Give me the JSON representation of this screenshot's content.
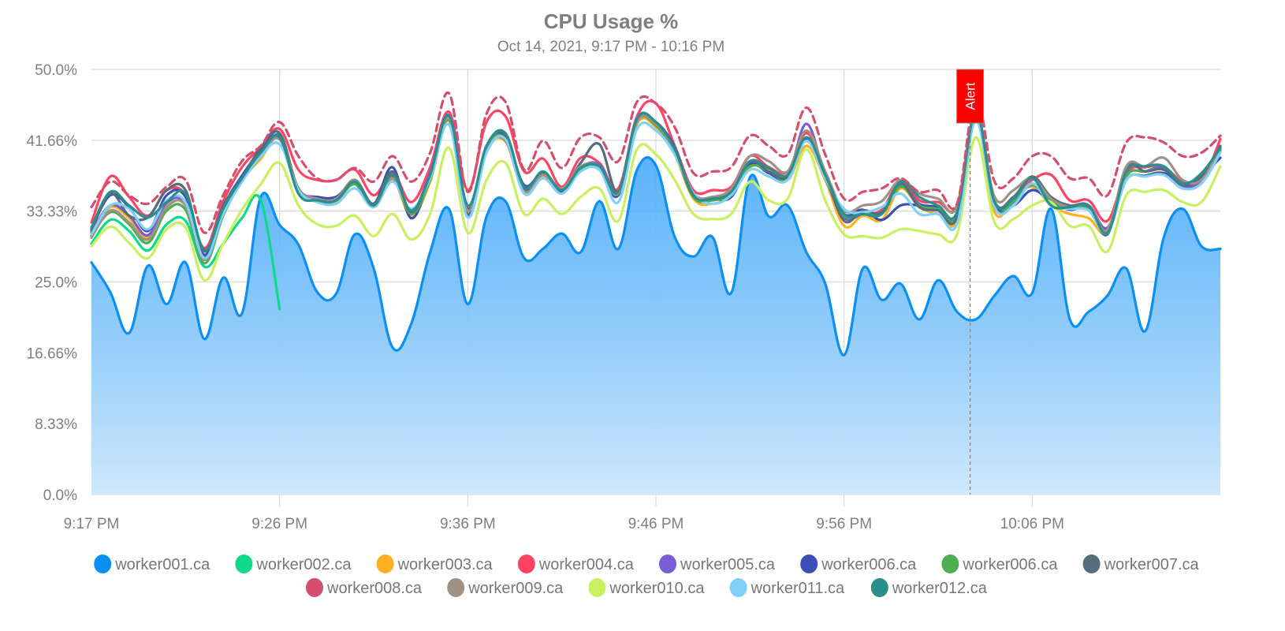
{
  "chart_data": {
    "type": "line",
    "title": "CPU Usage %",
    "subtitle": "Oct 14, 2021, 9:17 PM - 10:16 PM",
    "xlabel": "",
    "ylabel": "",
    "x_unit": "minutes since start",
    "x_range": [
      0,
      60
    ],
    "ylim": [
      0,
      50
    ],
    "y_ticks": [
      {
        "value": 0,
        "label": "0.0%"
      },
      {
        "value": 8.33,
        "label": "8.33%"
      },
      {
        "value": 16.66,
        "label": "16.66%"
      },
      {
        "value": 25.0,
        "label": "25.0%"
      },
      {
        "value": 33.33,
        "label": "33.33%"
      },
      {
        "value": 41.66,
        "label": "41.66%"
      },
      {
        "value": 50.0,
        "label": "50.0%"
      }
    ],
    "x_ticks": [
      {
        "value": 0,
        "label": "9:17 PM"
      },
      {
        "value": 10,
        "label": "9:26 PM"
      },
      {
        "value": 20,
        "label": "9:36 PM"
      },
      {
        "value": 30,
        "label": "9:46 PM"
      },
      {
        "value": 40,
        "label": "9:56 PM"
      },
      {
        "value": 50,
        "label": "10:06 PM"
      }
    ],
    "grid": true,
    "legend_position": "bottom",
    "annotations": [
      {
        "type": "vertical-line",
        "x": 46.7,
        "label": "Alert",
        "color": "#ff0000"
      }
    ],
    "series": [
      {
        "name": "worker001.ca",
        "color": "#0a8ff5",
        "style": "area",
        "values": [
          27.3,
          23.8,
          19.0,
          26.9,
          22.4,
          27.3,
          18.3,
          25.5,
          21.3,
          35.0,
          31.7,
          29.4,
          23.8,
          23.6,
          30.6,
          26.6,
          17.3,
          20.1,
          28.5,
          33.6,
          22.4,
          32.7,
          34.5,
          27.8,
          28.9,
          30.7,
          28.5,
          34.5,
          28.9,
          38.2,
          38.7,
          30.3,
          28.0,
          30.3,
          23.7,
          37.3,
          32.7,
          34.0,
          28.5,
          24.8,
          16.4,
          26.6,
          22.9,
          24.8,
          20.6,
          25.2,
          21.5,
          20.6,
          23.4,
          25.7,
          23.7,
          33.6,
          20.6,
          21.5,
          23.4,
          26.6,
          19.2,
          30.3,
          33.6,
          29.2,
          28.9
        ]
      },
      {
        "name": "worker002.ca",
        "color": "#0fd98a",
        "style": "line",
        "values": [
          29.5,
          32.3,
          31.0,
          28.7,
          31.8,
          32.2,
          26.8,
          29.5,
          32.5,
          34.6,
          21.8
        ]
      },
      {
        "name": "worker003.ca",
        "color": "#ffb020",
        "style": "line",
        "values": [
          30.6,
          33.8,
          32.5,
          30.2,
          34.2,
          34.3,
          27.6,
          33.0,
          37.0,
          39.5,
          42.0,
          36.0,
          34.5,
          34.5,
          36.5,
          33.8,
          37.0,
          32.8,
          36.8,
          44.0,
          33.8,
          40.5,
          41.5,
          35.6,
          37.5,
          35.4,
          38.2,
          38.8,
          35.2,
          43.6,
          43.2,
          40.0,
          34.8,
          34.2,
          35.2,
          38.5,
          38.2,
          37.0,
          41.0,
          37.0,
          31.6,
          32.8,
          32.3,
          36.0,
          33.8,
          33.0,
          32.3,
          44.2,
          33.2,
          34.8,
          36.2,
          34.0,
          33.0,
          32.5,
          30.8,
          37.0,
          37.5,
          37.8,
          36.0,
          37.3,
          40.8
        ]
      },
      {
        "name": "worker004.ca",
        "color": "#ff4463",
        "style": "line",
        "values": [
          32.0,
          37.4,
          35.0,
          32.8,
          35.8,
          35.2,
          29.0,
          34.5,
          38.5,
          40.8,
          43.0,
          38.2,
          37.0,
          37.0,
          38.2,
          35.2,
          37.8,
          34.4,
          38.5,
          45.0,
          35.8,
          43.8,
          44.5,
          38.0,
          39.5,
          36.2,
          39.6,
          39.0,
          36.0,
          44.5,
          46.0,
          41.0,
          35.8,
          35.8,
          36.2,
          39.8,
          38.5,
          38.0,
          42.5,
          37.8,
          32.8,
          33.0,
          33.5,
          36.8,
          34.6,
          34.4,
          34.0,
          44.8,
          34.2,
          35.0,
          37.0,
          37.6,
          34.6,
          34.6,
          32.2,
          37.8,
          38.5,
          38.5,
          36.8,
          36.8,
          41.8
        ]
      },
      {
        "name": "worker005.ca",
        "color": "#7b5cd6",
        "style": "line",
        "values": [
          30.8,
          34.0,
          32.8,
          30.5,
          34.3,
          34.2,
          28.0,
          33.2,
          37.2,
          40.0,
          42.2,
          36.0,
          35.0,
          35.0,
          36.5,
          34.0,
          37.5,
          33.4,
          37.8,
          44.3,
          32.8,
          41.0,
          42.0,
          36.0,
          37.8,
          36.0,
          38.5,
          38.8,
          35.6,
          44.0,
          43.5,
          40.4,
          35.0,
          35.0,
          35.8,
          39.0,
          38.0,
          37.4,
          43.6,
          37.4,
          32.6,
          33.0,
          33.0,
          36.4,
          34.2,
          33.8,
          33.0,
          44.5,
          34.0,
          34.4,
          36.5,
          34.6,
          33.8,
          34.0,
          31.4,
          37.5,
          38.0,
          38.4,
          36.2,
          37.0,
          40.5
        ]
      },
      {
        "name": "worker006.ca",
        "color": "#3c4fb5",
        "style": "line",
        "values": [
          31.2,
          35.2,
          33.8,
          31.0,
          35.2,
          35.0,
          28.2,
          33.8,
          37.5,
          40.5,
          42.5,
          35.6,
          35.0,
          35.0,
          36.8,
          34.2,
          38.5,
          32.5,
          37.5,
          44.5,
          33.6,
          41.0,
          42.0,
          36.4,
          37.8,
          35.6,
          38.4,
          38.2,
          35.2,
          44.0,
          43.8,
          40.8,
          35.0,
          34.8,
          35.0,
          38.8,
          37.8,
          37.2,
          41.8,
          37.2,
          33.0,
          33.5,
          32.3,
          34.0,
          34.0,
          33.8,
          33.0,
          44.5,
          34.2,
          34.0,
          35.8,
          34.5,
          33.5,
          33.8,
          31.2,
          37.0,
          37.5,
          37.8,
          36.6,
          37.5,
          39.6
        ]
      },
      {
        "name": "worker006.ca",
        "color": "#4caf50",
        "style": "line",
        "values": [
          30.4,
          33.2,
          31.8,
          29.6,
          33.4,
          33.5,
          27.2,
          32.8,
          37.0,
          39.8,
          41.8,
          36.0,
          34.5,
          34.6,
          36.5,
          33.8,
          37.2,
          33.0,
          37.0,
          44.0,
          33.0,
          40.8,
          41.8,
          35.8,
          37.6,
          35.8,
          38.2,
          38.6,
          35.4,
          43.8,
          43.4,
          40.2,
          35.0,
          34.6,
          35.4,
          38.6,
          38.0,
          37.2,
          42.0,
          37.4,
          32.8,
          33.2,
          33.0,
          36.2,
          34.0,
          33.6,
          32.8,
          44.4,
          33.8,
          34.5,
          36.4,
          34.4,
          33.6,
          33.6,
          31.0,
          37.4,
          38.0,
          38.2,
          36.6,
          37.2,
          40.6
        ]
      },
      {
        "name": "worker007.ca",
        "color": "#566d7e",
        "style": "line",
        "values": [
          31.0,
          35.4,
          32.8,
          32.6,
          35.8,
          35.8,
          28.6,
          34.0,
          37.2,
          40.8,
          42.5,
          36.0,
          34.8,
          34.6,
          37.0,
          34.2,
          38.0,
          33.2,
          37.6,
          44.5,
          33.0,
          41.0,
          42.2,
          36.0,
          37.8,
          35.8,
          39.0,
          41.2,
          35.6,
          44.2,
          43.6,
          40.4,
          35.2,
          34.8,
          35.6,
          39.2,
          38.0,
          37.4,
          42.0,
          37.6,
          32.2,
          33.4,
          33.2,
          36.6,
          33.8,
          33.4,
          32.6,
          45.0,
          34.5,
          35.0,
          37.4,
          35.0,
          34.0,
          34.0,
          30.6,
          38.4,
          38.0,
          38.2,
          36.4,
          37.4,
          41.0
        ]
      },
      {
        "name": "worker008.ca",
        "color": "#d44e6e",
        "style": "dashed",
        "values": [
          33.8,
          36.8,
          35.2,
          34.2,
          36.2,
          37.0,
          30.8,
          35.2,
          39.2,
          41.0,
          43.8,
          39.8,
          37.2,
          37.0,
          38.4,
          36.8,
          39.8,
          36.8,
          40.2,
          47.2,
          35.6,
          44.8,
          46.2,
          38.2,
          41.6,
          38.4,
          42.0,
          42.0,
          39.2,
          46.2,
          46.0,
          43.2,
          37.8,
          38.0,
          38.5,
          42.2,
          41.0,
          40.0,
          45.5,
          40.0,
          34.8,
          35.6,
          36.0,
          37.2,
          35.6,
          35.8,
          34.2,
          46.5,
          36.8,
          37.2,
          39.8,
          39.8,
          37.2,
          37.2,
          35.2,
          41.4,
          42.0,
          41.4,
          39.8,
          40.2,
          42.2
        ]
      },
      {
        "name": "worker009.ca",
        "color": "#a09186",
        "style": "line",
        "values": [
          30.2,
          33.4,
          32.0,
          30.0,
          33.8,
          34.0,
          27.6,
          33.0,
          36.8,
          39.8,
          41.8,
          36.0,
          34.8,
          34.8,
          37.0,
          33.8,
          37.2,
          33.4,
          37.5,
          44.2,
          33.4,
          40.6,
          41.6,
          35.6,
          37.6,
          36.0,
          38.6,
          38.6,
          35.4,
          43.8,
          43.6,
          40.4,
          35.4,
          35.0,
          36.0,
          39.8,
          39.2,
          38.0,
          42.8,
          38.0,
          33.4,
          34.0,
          34.5,
          37.0,
          35.4,
          34.8,
          33.8,
          44.8,
          35.0,
          35.8,
          37.2,
          34.8,
          33.8,
          34.0,
          31.2,
          38.6,
          38.6,
          39.6,
          37.0,
          37.0,
          40.8
        ]
      },
      {
        "name": "worker010.ca",
        "color": "#c8f060",
        "style": "line",
        "values": [
          29.2,
          31.5,
          29.6,
          27.8,
          31.2,
          31.4,
          25.2,
          29.5,
          33.5,
          36.5,
          39.0,
          34.0,
          31.8,
          31.6,
          32.8,
          30.4,
          33.0,
          30.0,
          33.0,
          40.8,
          30.8,
          37.0,
          39.0,
          33.0,
          34.8,
          33.0,
          35.0,
          36.0,
          32.2,
          40.6,
          40.0,
          37.0,
          33.0,
          32.4,
          33.0,
          36.8,
          34.6,
          34.8,
          40.6,
          34.6,
          30.6,
          30.4,
          30.2,
          31.2,
          31.0,
          30.6,
          30.6,
          42.0,
          32.0,
          32.4,
          34.0,
          34.4,
          31.6,
          31.6,
          28.6,
          35.2,
          35.6,
          35.8,
          34.4,
          34.4,
          38.6
        ]
      },
      {
        "name": "worker011.ca",
        "color": "#80d0fa",
        "style": "line",
        "values": [
          30.6,
          34.0,
          33.6,
          31.2,
          34.6,
          34.4,
          27.8,
          33.0,
          36.8,
          39.8,
          41.2,
          35.8,
          34.4,
          34.2,
          36.0,
          33.8,
          36.8,
          33.6,
          37.2,
          43.5,
          32.6,
          40.2,
          41.8,
          35.4,
          37.2,
          35.4,
          38.0,
          38.2,
          34.4,
          43.0,
          42.8,
          40.0,
          35.4,
          34.2,
          35.2,
          38.2,
          37.4,
          37.0,
          41.6,
          37.2,
          33.6,
          33.2,
          33.8,
          35.4,
          33.0,
          33.0,
          31.8,
          44.0,
          33.8,
          34.0,
          36.6,
          34.0,
          33.6,
          33.4,
          30.8,
          37.0,
          37.4,
          37.6,
          36.0,
          36.6,
          40.2
        ]
      },
      {
        "name": "worker012.ca",
        "color": "#2a8f8c",
        "style": "line",
        "values": [
          31.4,
          35.6,
          34.0,
          32.6,
          34.4,
          35.4,
          28.8,
          33.6,
          37.2,
          40.2,
          42.0,
          35.4,
          34.6,
          34.6,
          36.8,
          34.0,
          37.6,
          33.4,
          37.6,
          44.6,
          34.0,
          41.0,
          42.5,
          36.2,
          38.0,
          35.8,
          38.4,
          38.6,
          35.6,
          44.2,
          43.8,
          40.6,
          35.2,
          34.8,
          35.6,
          39.2,
          38.4,
          37.6,
          42.0,
          37.6,
          33.0,
          33.0,
          33.0,
          36.8,
          35.0,
          34.0,
          33.2,
          45.0,
          34.4,
          34.8,
          37.2,
          34.0,
          33.8,
          34.0,
          30.8,
          38.0,
          38.6,
          38.6,
          36.6,
          37.8,
          40.8
        ]
      }
    ]
  }
}
